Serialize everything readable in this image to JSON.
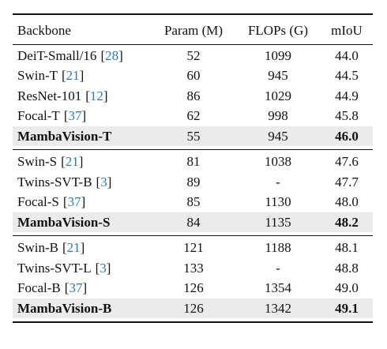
{
  "table": {
    "header": [
      "Backbone",
      "Param (M)",
      "FLOPs (G)",
      "mIoU"
    ],
    "groups": [
      {
        "rows": [
          {
            "name": "DeiT-Small/16",
            "cite": "[28]",
            "param": "52",
            "flops": "1099",
            "miou": "44.0",
            "highlight": false
          },
          {
            "name": "Swin-T",
            "cite": "[21]",
            "param": "60",
            "flops": "945",
            "miou": "44.5",
            "highlight": false
          },
          {
            "name": "ResNet-101",
            "cite": "[12]",
            "param": "86",
            "flops": "1029",
            "miou": "44.9",
            "highlight": false
          },
          {
            "name": "Focal-T",
            "cite": "[37]",
            "param": "62",
            "flops": "998",
            "miou": "45.8",
            "highlight": false
          },
          {
            "name": "MambaVision-T",
            "param": "55",
            "flops": "945",
            "miou": "46.0",
            "highlight": true
          }
        ]
      },
      {
        "rows": [
          {
            "name": "Swin-S",
            "cite": "[21]",
            "param": "81",
            "flops": "1038",
            "miou": "47.6",
            "highlight": false
          },
          {
            "name": "Twins-SVT-B",
            "cite": "[3]",
            "param": "89",
            "flops": "-",
            "miou": "47.7",
            "highlight": false
          },
          {
            "name": "Focal-S",
            "cite": "[37]",
            "param": "85",
            "flops": "1130",
            "miou": "48.0",
            "highlight": false
          },
          {
            "name": "MambaVision-S",
            "param": "84",
            "flops": "1135",
            "miou": "48.2",
            "highlight": true
          }
        ]
      },
      {
        "rows": [
          {
            "name": "Swin-B",
            "cite": "[21]",
            "param": "121",
            "flops": "1188",
            "miou": "48.1",
            "highlight": false
          },
          {
            "name": "Twins-SVT-L",
            "cite": "[3]",
            "param": "133",
            "flops": "-",
            "miou": "48.8",
            "highlight": false
          },
          {
            "name": "Focal-B",
            "cite": "[37]",
            "param": "126",
            "flops": "1354",
            "miou": "49.0",
            "highlight": false
          },
          {
            "name": "MambaVision-B",
            "param": "126",
            "flops": "1342",
            "miou": "49.1",
            "highlight": true
          }
        ]
      }
    ]
  }
}
